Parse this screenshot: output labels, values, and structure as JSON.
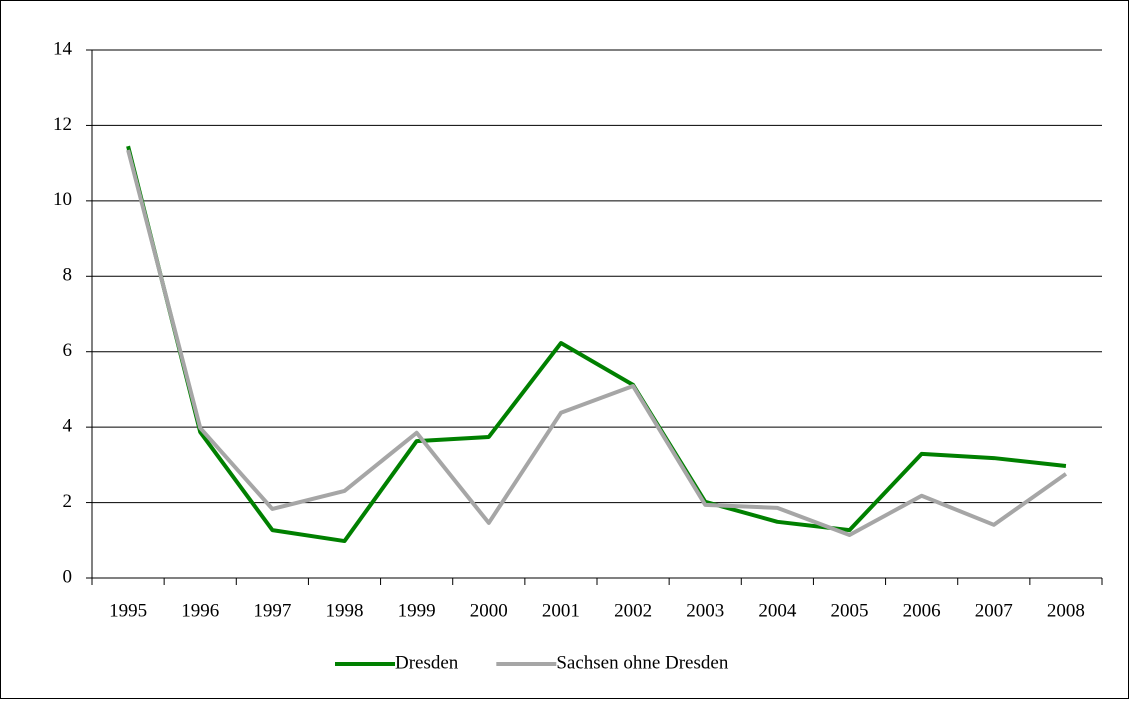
{
  "chart_data": {
    "type": "line",
    "categories": [
      "1995",
      "1996",
      "1997",
      "1998",
      "1999",
      "2000",
      "2001",
      "2002",
      "2003",
      "2004",
      "2005",
      "2006",
      "2007",
      "2008"
    ],
    "series": [
      {
        "name": "Dresden",
        "color": "#008000",
        "values": [
          11.45,
          3.87,
          1.27,
          0.98,
          3.63,
          3.74,
          6.23,
          5.12,
          2.02,
          1.49,
          1.27,
          3.29,
          3.18,
          2.97
        ]
      },
      {
        "name": "Sachsen ohne Dresden",
        "color": "#a6a6a6",
        "values": [
          11.35,
          3.98,
          1.83,
          2.31,
          3.85,
          1.46,
          4.38,
          5.09,
          1.94,
          1.86,
          1.14,
          2.18,
          1.41,
          2.76
        ]
      }
    ],
    "ylim": [
      0,
      14
    ],
    "yticks": [
      0,
      2,
      4,
      6,
      8,
      10,
      12,
      14
    ],
    "grid": true,
    "legend": "bottom"
  }
}
